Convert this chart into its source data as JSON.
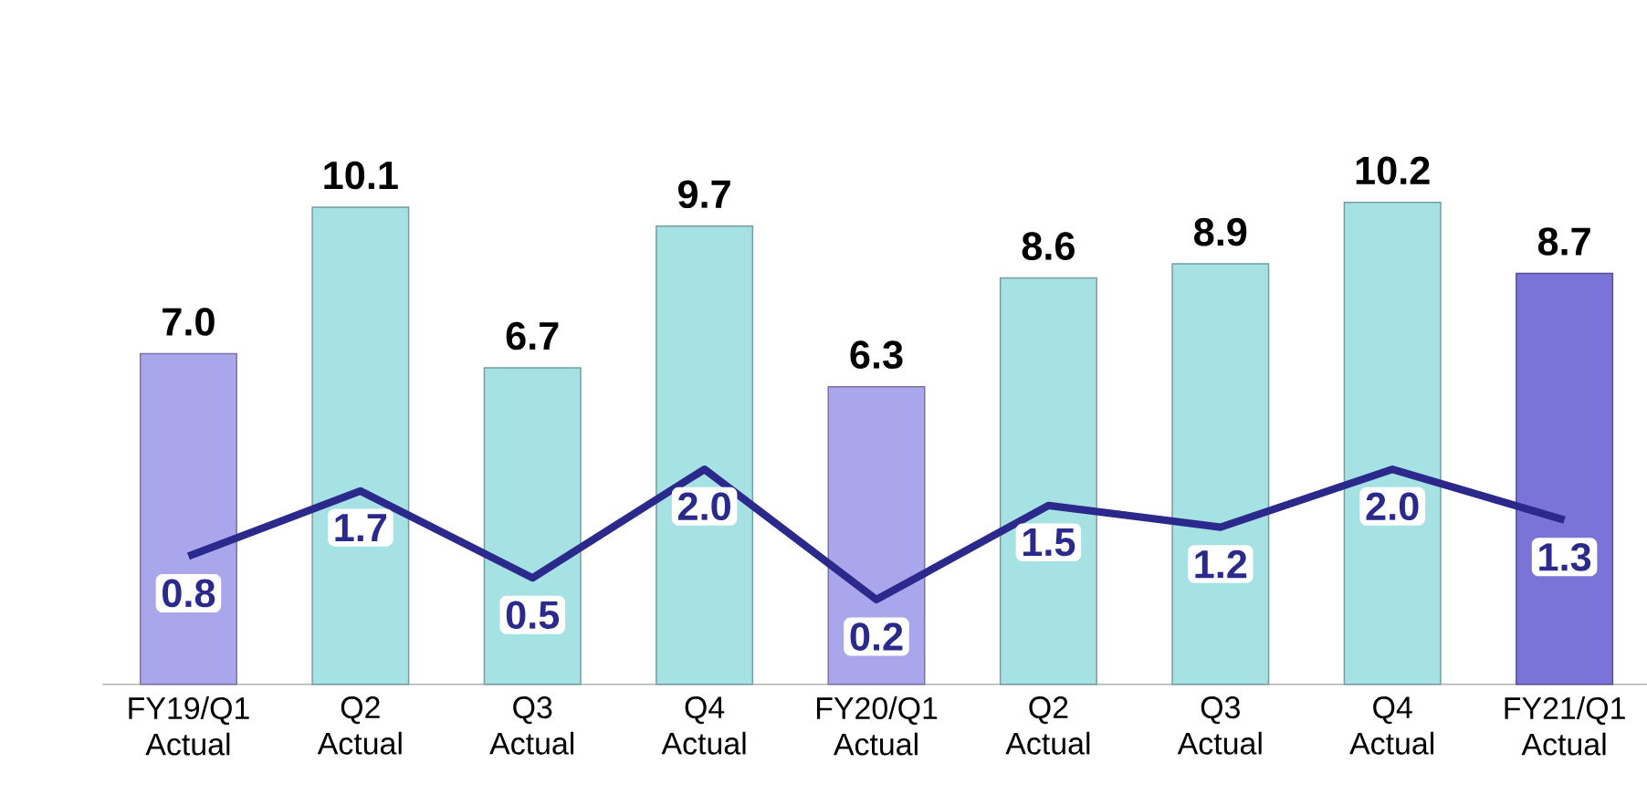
{
  "chart_data": {
    "type": "bar",
    "categories": [
      "FY19/Q1 Actual",
      "Q2 Actual",
      "Q3 Actual",
      "Q4 Actual",
      "FY20/Q1 Actual",
      "Q2 Actual",
      "Q3 Actual",
      "Q4 Actual",
      "FY21/Q1 Actual"
    ],
    "series": [
      {
        "type": "bar",
        "colors": [
          "#aaa6ec",
          "#a6e2e4",
          "#a6e2e4",
          "#a6e2e4",
          "#aaa6ec",
          "#a6e2e4",
          "#a6e2e4",
          "#a6e2e4",
          "#7b74d8"
        ],
        "values": [
          7.0,
          10.1,
          6.7,
          9.7,
          6.3,
          8.6,
          8.9,
          10.2,
          8.7
        ],
        "value_labels": [
          "7.0",
          "10.1",
          "6.7",
          "9.7",
          "6.3",
          "8.6",
          "8.9",
          "10.2",
          "8.7"
        ]
      },
      {
        "type": "line",
        "axis": "y2",
        "color": "#2b2a8c",
        "values": [
          0.8,
          1.7,
          0.5,
          2.0,
          0.2,
          1.5,
          1.2,
          2.0,
          1.3
        ],
        "value_labels": [
          "0.8",
          "1.7",
          "0.5",
          "2.0",
          "0.2",
          "1.5",
          "1.2",
          "2.0",
          "1.3"
        ]
      }
    ],
    "grid": false,
    "legend": false,
    "tick_labels": "x"
  }
}
